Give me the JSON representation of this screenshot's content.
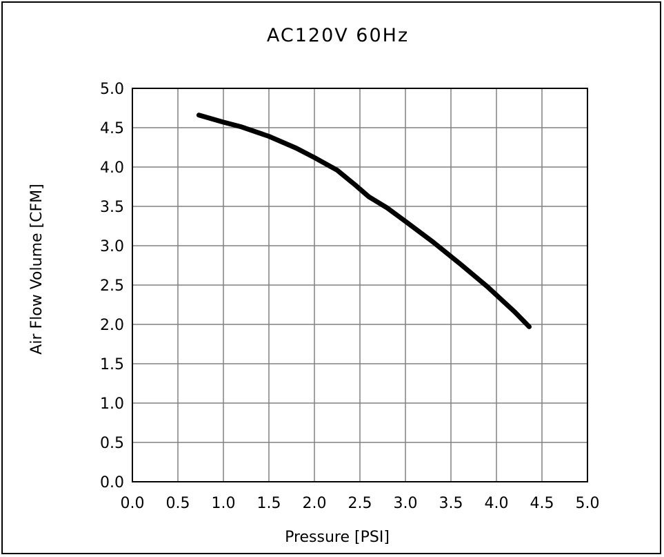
{
  "chart_data": {
    "type": "line",
    "title": "AC120V 60Hz",
    "xlabel": "Pressure [PSI]",
    "ylabel": "Air Flow Volume [CFM]",
    "xlim": [
      0,
      5
    ],
    "ylim": [
      0,
      5
    ],
    "x_ticks": [
      "0.0",
      "0.5",
      "1.0",
      "1.5",
      "2.0",
      "2.5",
      "3.0",
      "3.5",
      "4.0",
      "4.5",
      "5.0"
    ],
    "y_ticks": [
      "0.0",
      "0.5",
      "1.0",
      "1.5",
      "2.0",
      "2.5",
      "3.0",
      "3.5",
      "4.0",
      "4.5",
      "5.0"
    ],
    "grid": true,
    "line_color": "#000000",
    "series": [
      {
        "x": [
          0.73,
          1.0,
          1.2,
          1.5,
          1.8,
          2.0,
          2.25,
          2.45,
          2.6,
          2.8,
          3.0,
          3.3,
          3.6,
          3.9,
          4.2,
          4.36
        ],
        "y": [
          4.66,
          4.57,
          4.51,
          4.39,
          4.24,
          4.12,
          3.96,
          3.77,
          3.62,
          3.48,
          3.31,
          3.05,
          2.77,
          2.48,
          2.16,
          1.97
        ]
      }
    ]
  }
}
